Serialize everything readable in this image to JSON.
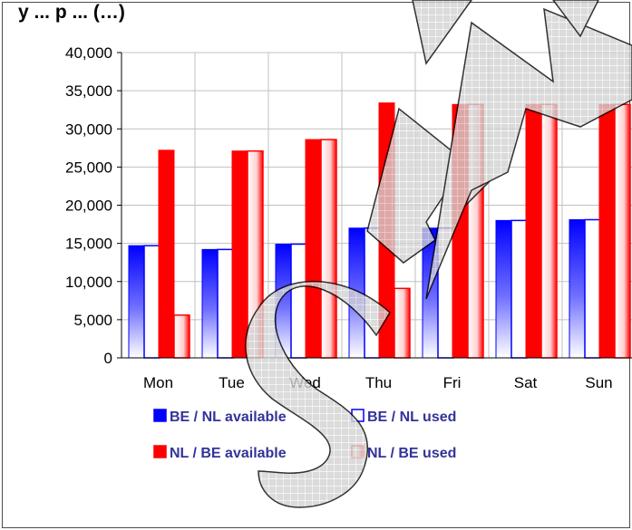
{
  "chart_data": {
    "type": "bar",
    "title": "y ... p ... (…)",
    "categories": [
      "Mon",
      "Tue",
      "Wed",
      "Thu",
      "Fri",
      "Sat",
      "Sun"
    ],
    "ylim": [
      0,
      40000
    ],
    "yticks": [
      "0",
      "5,000",
      "10,000",
      "15,000",
      "20,000",
      "25,000",
      "30,000",
      "35,000",
      "40,000"
    ],
    "grid": true,
    "legend_position": "bottom",
    "series": [
      {
        "name": "BE / NL available",
        "color": "#0000ff",
        "style": "solid",
        "values": [
          14700,
          14200,
          14900,
          17000,
          17000,
          18000,
          18100
        ]
      },
      {
        "name": "BE / NL used",
        "color": "#0000ff",
        "style": "outline",
        "values": [
          14700,
          14200,
          14900,
          17000,
          17000,
          18000,
          18100
        ]
      },
      {
        "name": "NL / BE available",
        "color": "#ff0000",
        "style": "solid",
        "values": [
          27200,
          27100,
          28600,
          33400,
          33200,
          33200,
          33200
        ]
      },
      {
        "name": "NL / BE used",
        "color": "#ff0000",
        "style": "outline",
        "values": [
          5600,
          27100,
          28600,
          9100,
          33200,
          33200,
          33200
        ]
      }
    ],
    "watermark": "SAMPLE"
  }
}
